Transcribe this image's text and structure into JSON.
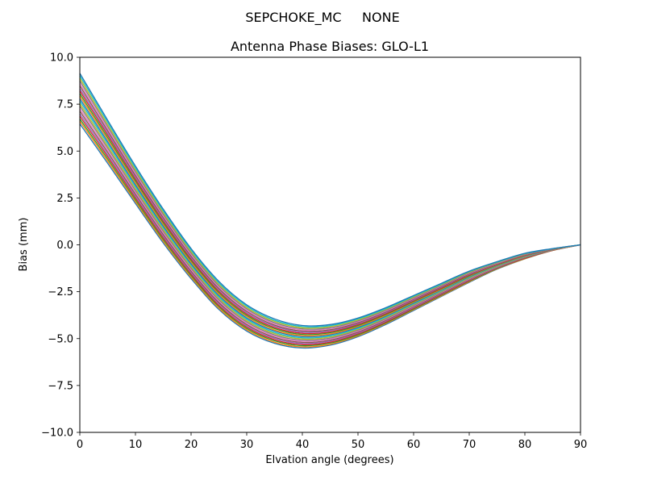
{
  "figure": {
    "suptitle": "SEPCHOKE_MC     NONE"
  },
  "chart_data": {
    "type": "line",
    "title": "Antenna Phase Biases: GLO-L1",
    "xlabel": "Elvation angle (degrees)",
    "ylabel": "Bias (mm)",
    "xlim": [
      0,
      90
    ],
    "ylim": [
      -10.0,
      10.0
    ],
    "xticks": [
      0,
      10,
      20,
      30,
      40,
      50,
      60,
      70,
      80,
      90
    ],
    "yticks": [
      -10.0,
      -7.5,
      -5.0,
      -2.5,
      0.0,
      2.5,
      5.0,
      7.5,
      10.0
    ],
    "grid": false,
    "legend": "none",
    "x": [
      0,
      5,
      10,
      15,
      20,
      25,
      30,
      35,
      40,
      45,
      50,
      55,
      60,
      65,
      70,
      75,
      80,
      85,
      90
    ],
    "series": [
      {
        "name": "s01",
        "color": "#1f77b4",
        "values": [
          6.45,
          4.35,
          2.2,
          0.1,
          -1.8,
          -3.45,
          -4.6,
          -5.25,
          -5.5,
          -5.35,
          -4.9,
          -4.25,
          -3.5,
          -2.75,
          -2.0,
          -1.3,
          -0.75,
          -0.3,
          0.0
        ]
      },
      {
        "name": "s02",
        "color": "#ff7f0e",
        "values": [
          6.59,
          4.47,
          2.3,
          0.19,
          -1.72,
          -3.38,
          -4.53,
          -5.19,
          -5.44,
          -5.3,
          -4.85,
          -4.2,
          -3.46,
          -2.72,
          -1.97,
          -1.28,
          -0.74,
          -0.3,
          0.0
        ]
      },
      {
        "name": "s03",
        "color": "#2ca02c",
        "values": [
          6.72,
          4.58,
          2.4,
          0.28,
          -1.64,
          -3.3,
          -4.46,
          -5.12,
          -5.38,
          -5.24,
          -4.8,
          -4.16,
          -3.42,
          -2.68,
          -1.94,
          -1.26,
          -0.72,
          -0.29,
          0.0
        ]
      },
      {
        "name": "s04",
        "color": "#d62728",
        "values": [
          6.86,
          4.7,
          2.5,
          0.37,
          -1.56,
          -3.23,
          -4.39,
          -5.06,
          -5.32,
          -5.19,
          -4.75,
          -4.12,
          -3.38,
          -2.65,
          -1.91,
          -1.24,
          -0.71,
          -0.29,
          0.0
        ]
      },
      {
        "name": "s05",
        "color": "#9467bd",
        "values": [
          6.99,
          4.81,
          2.6,
          0.46,
          -1.48,
          -3.15,
          -4.32,
          -4.99,
          -5.26,
          -5.13,
          -4.7,
          -4.07,
          -3.34,
          -2.61,
          -1.88,
          -1.22,
          -0.69,
          -0.28,
          0.0
        ]
      },
      {
        "name": "s06",
        "color": "#8c564b",
        "values": [
          7.13,
          4.93,
          2.7,
          0.55,
          -1.4,
          -3.08,
          -4.25,
          -4.93,
          -5.2,
          -5.08,
          -4.65,
          -4.03,
          -3.3,
          -2.58,
          -1.85,
          -1.2,
          -0.68,
          -0.28,
          0.0
        ]
      },
      {
        "name": "s07",
        "color": "#e377c2",
        "values": [
          7.26,
          5.04,
          2.8,
          0.64,
          -1.32,
          -3.0,
          -4.18,
          -4.86,
          -5.14,
          -5.02,
          -4.6,
          -3.98,
          -3.26,
          -2.54,
          -1.82,
          -1.18,
          -0.66,
          -0.27,
          0.0
        ]
      },
      {
        "name": "s08",
        "color": "#7f7f7f",
        "values": [
          7.4,
          5.16,
          2.9,
          0.73,
          -1.24,
          -2.93,
          -4.11,
          -4.8,
          -5.08,
          -4.97,
          -4.55,
          -3.94,
          -3.22,
          -2.51,
          -1.79,
          -1.16,
          -0.65,
          -0.27,
          0.0
        ]
      },
      {
        "name": "s09",
        "color": "#bcbd22",
        "values": [
          7.53,
          5.27,
          3.0,
          0.82,
          -1.16,
          -2.85,
          -4.04,
          -4.73,
          -5.02,
          -4.91,
          -4.5,
          -3.89,
          -3.18,
          -2.47,
          -1.76,
          -1.14,
          -0.63,
          -0.26,
          0.0
        ]
      },
      {
        "name": "s10",
        "color": "#17becf",
        "values": [
          7.67,
          5.39,
          3.1,
          0.91,
          -1.08,
          -2.78,
          -3.97,
          -4.67,
          -4.96,
          -4.86,
          -4.45,
          -3.85,
          -3.14,
          -2.44,
          -1.73,
          -1.12,
          -0.62,
          -0.26,
          0.0
        ]
      },
      {
        "name": "s11",
        "color": "#1f77b4",
        "values": [
          7.8,
          5.5,
          3.2,
          1.0,
          -1.0,
          -2.7,
          -3.9,
          -4.6,
          -4.9,
          -4.8,
          -4.4,
          -3.8,
          -3.1,
          -2.4,
          -1.7,
          -1.1,
          -0.6,
          -0.25,
          0.0
        ]
      },
      {
        "name": "s12",
        "color": "#ff7f0e",
        "values": [
          7.94,
          5.62,
          3.3,
          1.09,
          -0.92,
          -2.63,
          -3.83,
          -4.54,
          -4.84,
          -4.75,
          -4.35,
          -3.76,
          -3.06,
          -2.37,
          -1.67,
          -1.08,
          -0.59,
          -0.25,
          0.0
        ]
      },
      {
        "name": "s13",
        "color": "#2ca02c",
        "values": [
          8.07,
          5.73,
          3.4,
          1.18,
          -0.84,
          -2.55,
          -3.76,
          -4.47,
          -4.78,
          -4.69,
          -4.3,
          -3.71,
          -3.02,
          -2.33,
          -1.64,
          -1.06,
          -0.57,
          -0.24,
          0.0
        ]
      },
      {
        "name": "s14",
        "color": "#d62728",
        "values": [
          8.21,
          5.85,
          3.5,
          1.27,
          -0.76,
          -2.48,
          -3.69,
          -4.41,
          -4.72,
          -4.64,
          -4.25,
          -3.67,
          -2.98,
          -2.3,
          -1.61,
          -1.04,
          -0.56,
          -0.24,
          0.0
        ]
      },
      {
        "name": "s15",
        "color": "#9467bd",
        "values": [
          8.34,
          5.96,
          3.6,
          1.36,
          -0.68,
          -2.4,
          -3.62,
          -4.34,
          -4.66,
          -4.58,
          -4.2,
          -3.62,
          -2.94,
          -2.26,
          -1.58,
          -1.02,
          -0.54,
          -0.23,
          0.0
        ]
      },
      {
        "name": "s16",
        "color": "#8c564b",
        "values": [
          8.48,
          6.08,
          3.7,
          1.45,
          -0.6,
          -2.33,
          -3.55,
          -4.28,
          -4.6,
          -4.53,
          -4.15,
          -3.58,
          -2.9,
          -2.23,
          -1.55,
          -1.0,
          -0.53,
          -0.23,
          0.0
        ]
      },
      {
        "name": "s17",
        "color": "#e377c2",
        "values": [
          8.61,
          6.19,
          3.8,
          1.54,
          -0.52,
          -2.25,
          -3.48,
          -4.21,
          -4.54,
          -4.47,
          -4.1,
          -3.53,
          -2.86,
          -2.19,
          -1.52,
          -0.98,
          -0.51,
          -0.22,
          0.0
        ]
      },
      {
        "name": "s18",
        "color": "#7f7f7f",
        "values": [
          8.75,
          6.31,
          3.9,
          1.63,
          -0.44,
          -2.18,
          -3.41,
          -4.15,
          -4.48,
          -4.42,
          -4.05,
          -3.49,
          -2.82,
          -2.16,
          -1.49,
          -0.96,
          -0.5,
          -0.22,
          0.0
        ]
      },
      {
        "name": "s19",
        "color": "#bcbd22",
        "values": [
          8.88,
          6.42,
          4.0,
          1.72,
          -0.36,
          -2.1,
          -3.34,
          -4.08,
          -4.42,
          -4.36,
          -4.0,
          -3.44,
          -2.78,
          -2.12,
          -1.46,
          -0.94,
          -0.48,
          -0.21,
          0.0
        ]
      },
      {
        "name": "s20",
        "color": "#17becf",
        "values": [
          9.02,
          6.54,
          4.1,
          1.81,
          -0.28,
          -2.03,
          -3.27,
          -4.02,
          -4.36,
          -4.31,
          -3.95,
          -3.4,
          -2.74,
          -2.09,
          -1.43,
          -0.92,
          -0.47,
          -0.21,
          0.0
        ]
      },
      {
        "name": "s21",
        "color": "#1f77b4",
        "values": [
          9.15,
          6.65,
          4.2,
          1.9,
          -0.2,
          -1.95,
          -3.2,
          -3.95,
          -4.3,
          -4.25,
          -3.9,
          -3.35,
          -2.7,
          -2.05,
          -1.4,
          -0.9,
          -0.45,
          -0.2,
          0.0
        ]
      }
    ]
  }
}
